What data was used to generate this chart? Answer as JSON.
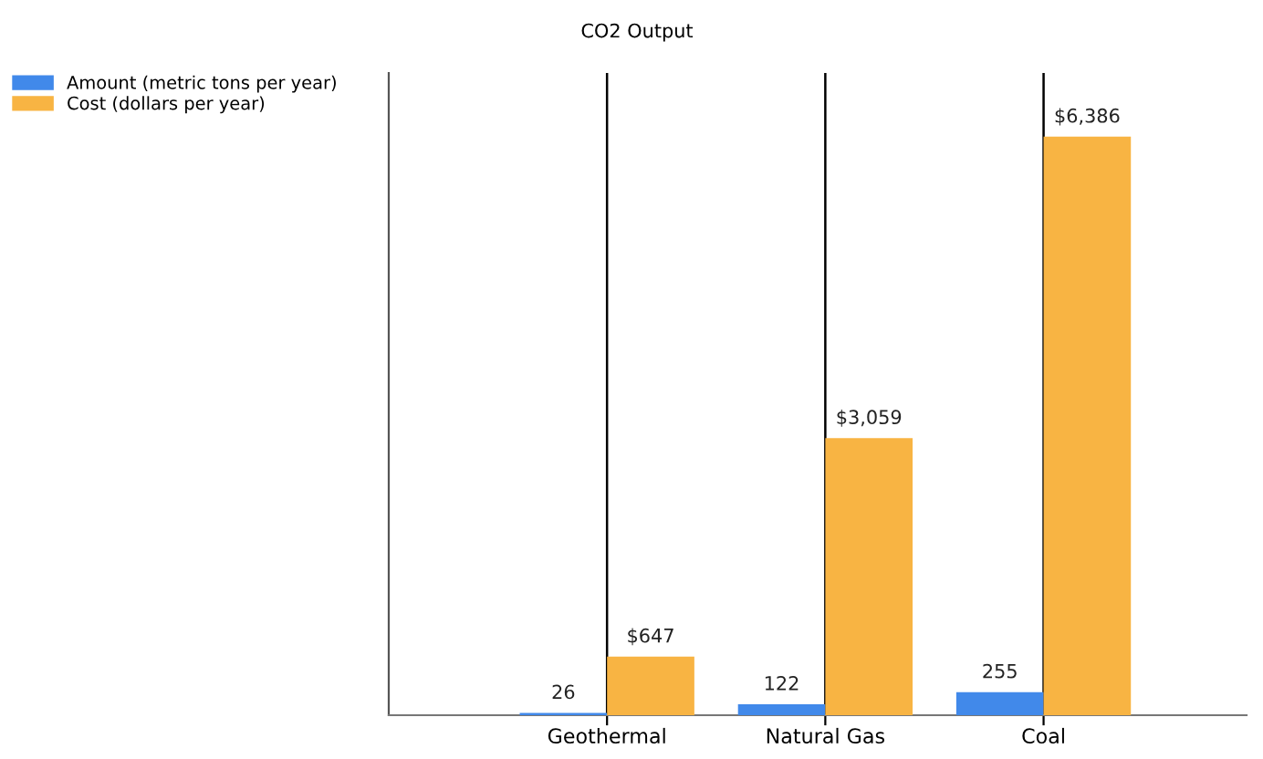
{
  "chart_data": {
    "type": "bar",
    "title": "CO2 Output",
    "categories": [
      "Geothermal",
      "Natural Gas",
      "Coal"
    ],
    "series": [
      {
        "name": "Amount (metric tons per year)",
        "color": "#4189ea",
        "values": [
          26,
          122,
          255
        ],
        "value_labels": [
          "26",
          "122",
          "255"
        ]
      },
      {
        "name": "Cost (dollars per year)",
        "color": "#f8b443",
        "values": [
          647,
          3059,
          6386
        ],
        "value_labels": [
          "$647",
          "$3,059",
          "$6,386"
        ]
      }
    ],
    "grid": "x",
    "legend": "top left"
  }
}
